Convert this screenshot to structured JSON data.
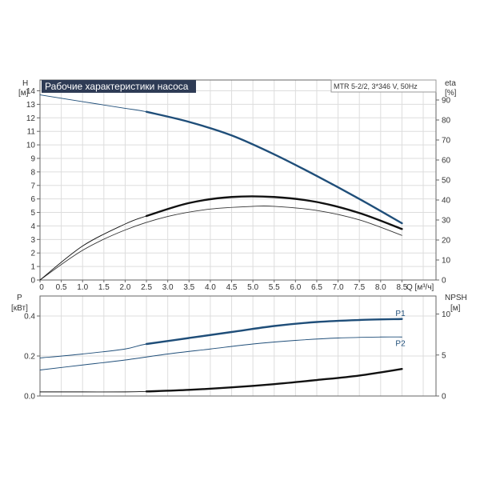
{
  "colors": {
    "frame": "#666666",
    "grid": "#dddddd",
    "curve_blue": "#1f4e79",
    "curve_thin": "#333333",
    "curve_black": "#111111",
    "title_bg": "#2e3b55",
    "text": "#333333"
  },
  "title": "Рабочие характеристики насоса",
  "model": "MTR 5-2/2, 3*346 V, 50Hz",
  "axes": {
    "h_label": [
      "H",
      "[м]"
    ],
    "eta_label": [
      "eta",
      "[%]"
    ],
    "q_label": "Q [м³/ч]",
    "p_label": [
      "P",
      "[кВт]"
    ],
    "npsh_label": [
      "NPSH",
      "[м]"
    ]
  },
  "chart_data": [
    {
      "type": "line",
      "title": "Рабочие характеристики насоса",
      "xlabel": "Q [м³/ч]",
      "ylabel": "H [м]",
      "ylabel_right": "eta [%]",
      "xlim": [
        0,
        9.3
      ],
      "ylim": [
        0,
        14.8
      ],
      "ylim_right": [
        0,
        100
      ],
      "grid": true,
      "x_ticks": [
        "0",
        "0.5",
        "1.0",
        "1.5",
        "2.0",
        "2.5",
        "3.0",
        "3.5",
        "4.0",
        "4.5",
        "5.0",
        "5.5",
        "6.0",
        "6.5",
        "7.0",
        "7.5",
        "8.0",
        "8.5"
      ],
      "y_ticks": [
        "0",
        "1",
        "2",
        "3",
        "4",
        "5",
        "6",
        "7",
        "8",
        "9",
        "10",
        "11",
        "12",
        "13",
        "14"
      ],
      "y_ticks_right": [
        "0",
        "10",
        "20",
        "30",
        "40",
        "50",
        "60",
        "70",
        "80",
        "90"
      ],
      "series": [
        {
          "name": "",
          "axis": "left",
          "style": "blue",
          "x": [
            0,
            1.0,
            2.0,
            2.5,
            3.5,
            4.5,
            5.5,
            6.5,
            7.5,
            8.5
          ],
          "y": [
            13.7,
            13.2,
            12.7,
            12.45,
            11.7,
            10.7,
            9.3,
            7.7,
            6.0,
            4.2
          ],
          "emphasis_from": 2.5
        },
        {
          "name": "",
          "axis": "left",
          "style": "thin",
          "x": [
            0,
            1.0,
            2.0,
            3.0,
            4.0,
            5.0,
            5.5,
            6.5,
            7.5,
            8.5
          ],
          "y": [
            0,
            2.2,
            3.7,
            4.7,
            5.25,
            5.45,
            5.45,
            5.15,
            4.45,
            3.3
          ]
        },
        {
          "name": "",
          "axis": "right",
          "style": "black",
          "x": [
            0,
            1.0,
            2.0,
            2.5,
            3.5,
            4.5,
            5.5,
            6.5,
            7.5,
            8.5
          ],
          "y": [
            0,
            17,
            28,
            32,
            38.5,
            41.5,
            41.5,
            39,
            33.5,
            25.5
          ],
          "emphasis_from": 2.5
        }
      ]
    },
    {
      "type": "line",
      "xlabel": "",
      "ylabel": "P [кВт]",
      "ylabel_right": "NPSH [м]",
      "xlim": [
        0,
        9.3
      ],
      "ylim": [
        0,
        0.5
      ],
      "ylim_right": [
        0,
        12.2
      ],
      "grid": true,
      "y_ticks": [
        "0.0",
        "0.2",
        "0.4"
      ],
      "y_ticks_right": [
        "0",
        "5",
        "10"
      ],
      "series": [
        {
          "name": "P1",
          "axis": "left",
          "style": "blue",
          "x": [
            0,
            1.0,
            2.0,
            2.5,
            3.5,
            4.5,
            5.5,
            6.5,
            7.5,
            8.5
          ],
          "y": [
            0.19,
            0.21,
            0.235,
            0.26,
            0.29,
            0.32,
            0.35,
            0.37,
            0.38,
            0.385
          ],
          "emphasis_from": 2.5
        },
        {
          "name": "P2",
          "axis": "left",
          "style": "blue-thin",
          "x": [
            0,
            1.0,
            2.0,
            3.0,
            4.0,
            5.0,
            6.0,
            7.0,
            8.0,
            8.5
          ],
          "y": [
            0.13,
            0.155,
            0.18,
            0.21,
            0.235,
            0.26,
            0.278,
            0.29,
            0.295,
            0.295
          ]
        },
        {
          "name": "",
          "axis": "right",
          "style": "black",
          "x": [
            0,
            1.0,
            2.0,
            2.5,
            3.5,
            4.5,
            5.5,
            6.5,
            7.5,
            8.5
          ],
          "y": [
            0.5,
            0.5,
            0.5,
            0.55,
            0.75,
            1.05,
            1.45,
            1.95,
            2.5,
            3.3
          ],
          "emphasis_from": 2.5
        }
      ]
    }
  ]
}
